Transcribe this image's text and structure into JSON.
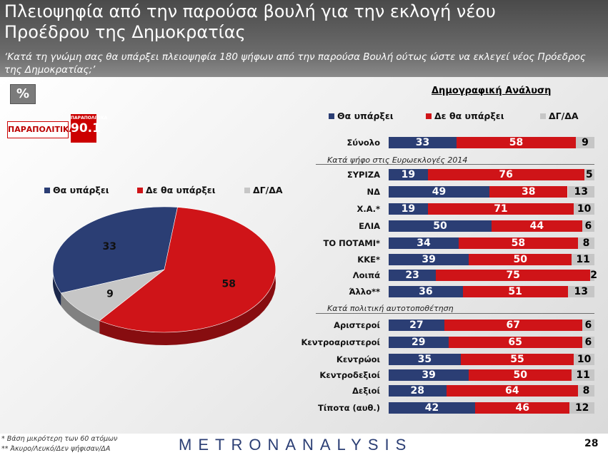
{
  "header": {
    "title_line1": "Πλειοψηφία από την παρούσα βουλή για την εκλογή νέου",
    "title_line2": "Προέδρου της Δημοκρατίας",
    "subtitle": "‘Κατά τη γνώμη σας θα υπάρξει πλειοψηφία 180 ψήφων από την παρούσα Βουλή ούτως ώστε να εκλεγεί νέος Πρόεδρος της Δημοκρατίας;’"
  },
  "percent_label": "%",
  "logos": {
    "paper": "ΠΑΡΑΠΟΛΙΤΙΚΑ",
    "radio_top": "ΠΑΡΑΠΟΛΙΤΙΚΑ",
    "radio_num": "90.1"
  },
  "colors": {
    "yes": "#2b3e74",
    "no": "#cf1418",
    "dk": "#c6c6c6"
  },
  "legend": {
    "yes": "Θα υπάρξει",
    "no": "Δε θα υπάρξει",
    "dk": "ΔΓ/ΔΑ"
  },
  "demo_title": "Δημογραφική Ανάλυση",
  "footer": {
    "note1": "*  Βάση μικρότερη των 60 ατόμων",
    "note2": "** Άκυρο/Λευκό/Δεν ψήφισαν/ΔΑ",
    "brand": "METRONANALYSIS",
    "page": "28"
  },
  "chart_data": [
    {
      "type": "pie",
      "title": "",
      "labels": [
        "Θα υπάρξει",
        "Δε θα υπάρξει",
        "ΔΓ/ΔΑ"
      ],
      "values": [
        33,
        58,
        9
      ]
    },
    {
      "type": "bar",
      "orientation": "horizontal",
      "stacked": true,
      "title": "Δημογραφική Ανάλυση",
      "series_names": [
        "Θα υπάρξει",
        "Δε θα υπάρξει",
        "ΔΓ/ΔΑ"
      ],
      "groups": [
        {
          "label": "",
          "rows": [
            {
              "label": "Σύνολο",
              "values": [
                33,
                58,
                9
              ]
            }
          ]
        },
        {
          "label": "Κατά ψήφο στις Ευρωεκλογές 2014",
          "rows": [
            {
              "label": "ΣΥΡΙΖΑ",
              "values": [
                19,
                76,
                5
              ]
            },
            {
              "label": "ΝΔ",
              "values": [
                49,
                38,
                13
              ]
            },
            {
              "label": "Χ.Α.*",
              "values": [
                19,
                71,
                10
              ]
            },
            {
              "label": "ΕΛΙΑ",
              "values": [
                50,
                44,
                6
              ]
            },
            {
              "label": "ΤΟ ΠΟΤΑΜΙ*",
              "values": [
                34,
                58,
                8
              ]
            },
            {
              "label": "ΚΚΕ*",
              "values": [
                39,
                50,
                11
              ]
            },
            {
              "label": "Λοιπά",
              "values": [
                23,
                75,
                2
              ]
            },
            {
              "label": "Άλλο**",
              "values": [
                36,
                51,
                13
              ]
            }
          ]
        },
        {
          "label": "Κατά πολιτική αυτοτοποθέτηση",
          "rows": [
            {
              "label": "Αριστεροί",
              "values": [
                27,
                67,
                6
              ]
            },
            {
              "label": "Κεντροαριστεροί",
              "values": [
                29,
                65,
                6
              ]
            },
            {
              "label": "Κεντρώοι",
              "values": [
                35,
                55,
                10
              ]
            },
            {
              "label": "Κεντροδεξιοί",
              "values": [
                39,
                50,
                11
              ]
            },
            {
              "label": "Δεξιοί",
              "values": [
                28,
                64,
                8
              ]
            },
            {
              "label": "Τίποτα (αυθ.)",
              "values": [
                42,
                46,
                12
              ]
            }
          ]
        }
      ]
    }
  ]
}
